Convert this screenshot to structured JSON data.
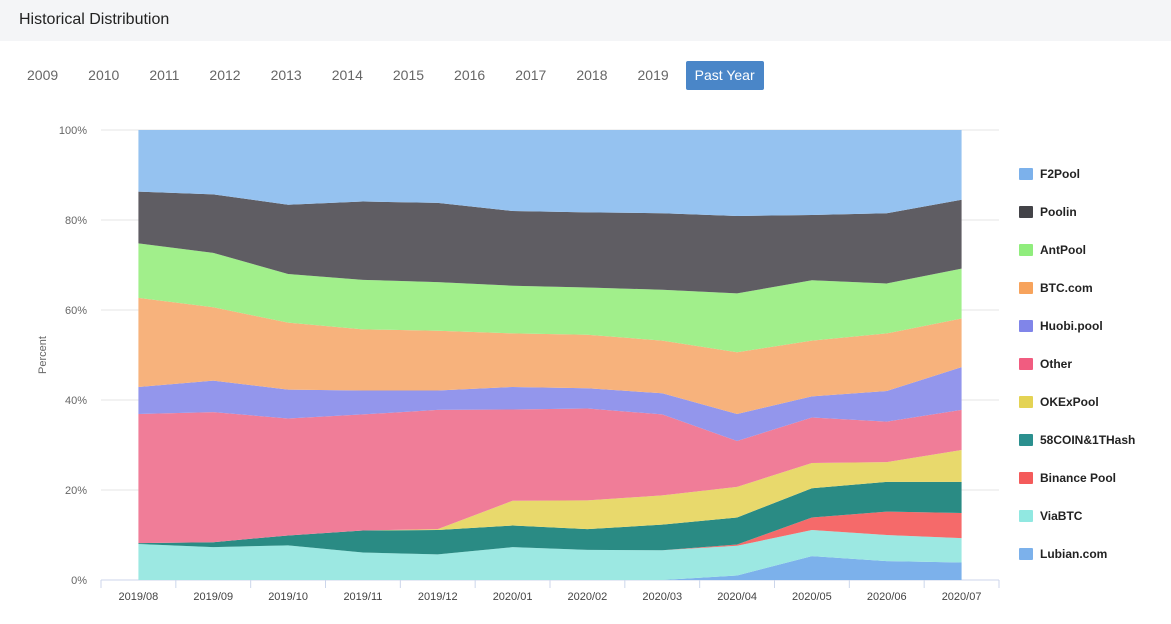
{
  "header": {
    "title": "Historical Distribution"
  },
  "year_tabs": [
    "2009",
    "2010",
    "2011",
    "2012",
    "2013",
    "2014",
    "2015",
    "2016",
    "2017",
    "2018",
    "2019",
    "Past Year"
  ],
  "active_tab": "Past Year",
  "chart_data": {
    "type": "area",
    "stacked": true,
    "ylabel": "Percent",
    "ylim": [
      0,
      100
    ],
    "yticks": [
      "0%",
      "20%",
      "40%",
      "60%",
      "80%",
      "100%"
    ],
    "categories": [
      "2019/08",
      "2019/09",
      "2019/10",
      "2019/11",
      "2019/12",
      "2020/01",
      "2020/02",
      "2020/03",
      "2020/04",
      "2020/05",
      "2020/06",
      "2020/07"
    ],
    "legend_position": "right",
    "grid": true,
    "series": [
      {
        "name": "Lubian.com",
        "color": "#7cb1eb",
        "values": [
          0,
          0,
          0,
          0,
          0,
          0,
          0,
          0,
          1.0,
          5.3,
          4.2,
          3.9
        ]
      },
      {
        "name": "ViaBTC",
        "color": "#9ce8e2",
        "values": [
          8.0,
          7.3,
          7.7,
          6.1,
          5.7,
          7.3,
          6.7,
          6.6,
          6.6,
          5.8,
          5.8,
          5.4
        ]
      },
      {
        "name": "Binance Pool",
        "color": "#f56a6a",
        "values": [
          0,
          0,
          0,
          0,
          0,
          0,
          0,
          0,
          0.3,
          2.8,
          5.2,
          5.6
        ]
      },
      {
        "name": "58COIN&1THash",
        "color": "#2a8b84",
        "values": [
          0.2,
          1.1,
          2.2,
          4.9,
          5.4,
          4.8,
          4.6,
          5.7,
          6.0,
          6.5,
          6.6,
          6.9
        ]
      },
      {
        "name": "OKExPool",
        "color": "#e8d96c",
        "values": [
          0,
          0,
          0,
          0,
          0.2,
          5.5,
          6.4,
          6.5,
          6.8,
          5.6,
          4.4,
          7.1
        ]
      },
      {
        "name": "Other",
        "color": "#f07d98",
        "values": [
          28.7,
          28.9,
          26.0,
          25.8,
          26.5,
          20.3,
          20.4,
          18.0,
          10.2,
          10.1,
          9.0,
          8.9
        ]
      },
      {
        "name": "Huobi.pool",
        "color": "#9396ec",
        "values": [
          6.0,
          7.0,
          6.4,
          5.3,
          4.3,
          5.0,
          4.5,
          4.7,
          6.0,
          4.7,
          6.8,
          9.5
        ]
      },
      {
        "name": "BTC.com",
        "color": "#f7b27c",
        "values": [
          19.8,
          16.3,
          14.9,
          13.6,
          13.3,
          11.9,
          11.9,
          11.7,
          13.7,
          12.4,
          12.8,
          10.8
        ]
      },
      {
        "name": "AntPool",
        "color": "#a1ef8b",
        "values": [
          12.1,
          12.1,
          10.8,
          11.0,
          10.8,
          10.6,
          10.5,
          11.3,
          13.1,
          13.4,
          11.1,
          11.1
        ]
      },
      {
        "name": "Poolin",
        "color": "#5f5d63",
        "values": [
          11.5,
          13.0,
          15.4,
          17.4,
          17.6,
          16.6,
          16.7,
          17.0,
          17.2,
          14.5,
          15.6,
          15.3
        ]
      },
      {
        "name": "F2Pool",
        "color": "#95c2f0",
        "values": [
          13.7,
          14.3,
          16.6,
          15.9,
          16.2,
          18.0,
          18.3,
          18.5,
          19.1,
          18.9,
          18.5,
          15.5
        ]
      }
    ]
  },
  "legend": [
    {
      "name": "F2Pool",
      "color": "#7cb1eb"
    },
    {
      "name": "Poolin",
      "color": "#434348"
    },
    {
      "name": "AntPool",
      "color": "#90ed7d"
    },
    {
      "name": "BTC.com",
      "color": "#f7a35c"
    },
    {
      "name": "Huobi.pool",
      "color": "#8085e9"
    },
    {
      "name": "Other",
      "color": "#f15c80"
    },
    {
      "name": "OKExPool",
      "color": "#e4d354"
    },
    {
      "name": "58COIN&1THash",
      "color": "#2b908f"
    },
    {
      "name": "Binance Pool",
      "color": "#f45b5b"
    },
    {
      "name": "ViaBTC",
      "color": "#91e8e1"
    },
    {
      "name": "Lubian.com",
      "color": "#7cb1eb"
    }
  ]
}
